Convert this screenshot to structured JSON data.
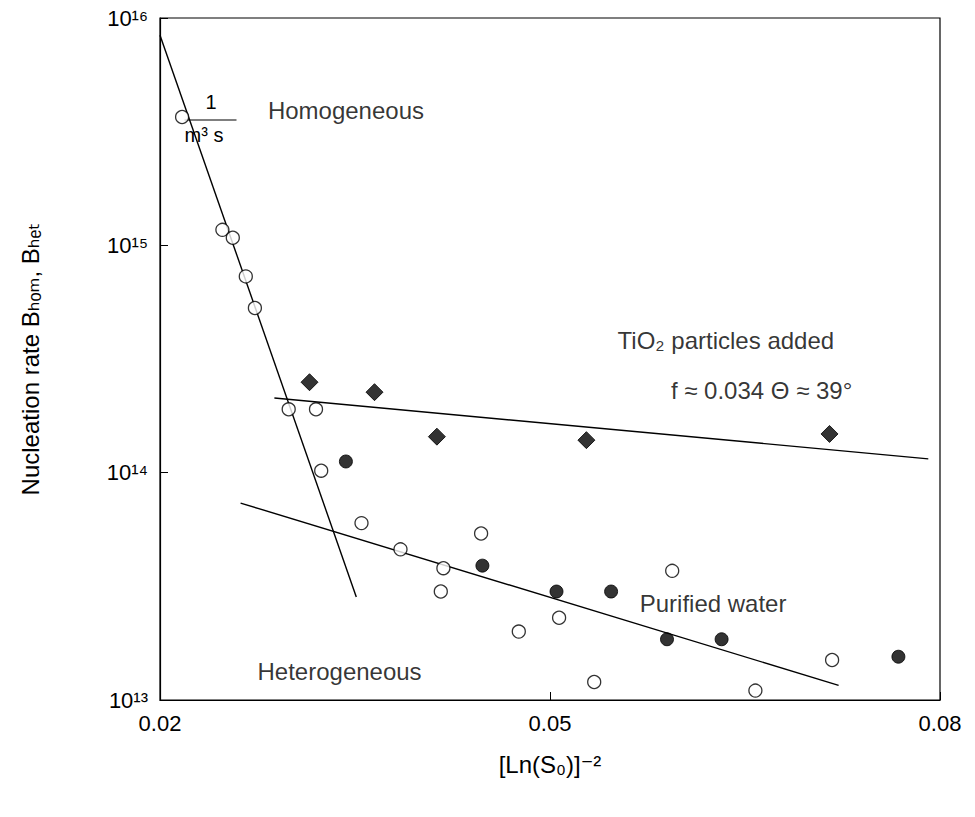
{
  "chart_data": {
    "type": "scatter",
    "xlabel": "[Ln(S₀)]⁻²",
    "ylabel": "Nucleation rate Bₕₒₘ, Bₕₑₜ",
    "y_unit": {
      "numerator": "1",
      "denominator": "m³ s"
    },
    "log": "y",
    "grid": false,
    "xlim": [
      0.02,
      0.08
    ],
    "xticks": [
      0.02,
      0.05,
      0.08
    ],
    "ylim": [
      10000000000000.0,
      1e+16
    ],
    "yticks": [
      {
        "value": 10000000000000.0,
        "label": "10¹³"
      },
      {
        "value": 100000000000000.0,
        "label": "10¹⁴"
      },
      {
        "value": 1000000000000000.0,
        "label": "10¹⁵"
      },
      {
        "value": 1e+16,
        "label": "10¹⁶"
      }
    ],
    "series": [
      {
        "type": "line",
        "line_style": "solid",
        "color": "#000000",
        "x": [
          0.02,
          0.0351
        ],
        "values": [
          8400000000000000.0,
          28400000000000.0
        ]
      },
      {
        "type": "line",
        "line_style": "solid",
        "color": "#000000",
        "x": [
          0.0288,
          0.0791
        ],
        "values": [
          213000000000000.0,
          115000000000000.0
        ]
      },
      {
        "type": "line",
        "line_style": "solid",
        "color": "#000000",
        "x": [
          0.0262,
          0.0722
        ],
        "values": [
          73500000000000.0,
          11600000000000.0
        ]
      },
      {
        "type": "scatter",
        "marker": "circle_open",
        "color": "#000000",
        "x": [
          0.0217,
          0.0248,
          0.0256,
          0.0266,
          0.0273,
          0.0299,
          0.032,
          0.0324,
          0.0355,
          0.0385,
          0.0418,
          0.0416,
          0.0447,
          0.0476,
          0.0507,
          0.0534,
          0.0594,
          0.0658,
          0.0717
        ],
        "values": [
          3670000000000000.0,
          1170000000000000.0,
          1080000000000000.0,
          730000000000000.0,
          530000000000000.0,
          190000000000000.0,
          190000000000000.0,
          102000000000000.0,
          60000000000000.0,
          46000000000000.0,
          38000000000000.0,
          30000000000000.0,
          54000000000000.0,
          20000000000000.0,
          23000000000000.0,
          12000000000000.0,
          37000000000000.0,
          11000000000000.0,
          15000000000000.0
        ]
      },
      {
        "type": "scatter",
        "marker": "circle",
        "color": "#000000",
        "x": [
          0.0343,
          0.0448,
          0.0505,
          0.0547,
          0.059,
          0.0632,
          0.0768
        ],
        "values": [
          112000000000000.0,
          39000000000000.0,
          30000000000000.0,
          30000000000000.0,
          18500000000000.0,
          18500000000000.0,
          15500000000000.0
        ]
      },
      {
        "type": "scatter",
        "marker": "diamond",
        "color": "#000000",
        "x": [
          0.0315,
          0.0365,
          0.0413,
          0.0528,
          0.0715
        ],
        "values": [
          250000000000000.0,
          226000000000000.0,
          144000000000000.0,
          139000000000000.0,
          148000000000000.0
        ]
      }
    ],
    "annotations": [
      {
        "text": "Homogeneous",
        "x": 0.0283,
        "y": 3900000000000000.0
      },
      {
        "text": "TiO₂ particles added",
        "x": 0.0552,
        "y": 380000000000000.0
      },
      {
        "text": "f ≈ 0.034 Θ ≈ 39°",
        "x": 0.0593,
        "y": 229000000000000.0
      },
      {
        "text": "Purified water",
        "x": 0.0569,
        "y": 26700000000000.0
      },
      {
        "text": "Heterogeneous",
        "x": 0.0275,
        "y": 13300000000000.0
      }
    ]
  }
}
